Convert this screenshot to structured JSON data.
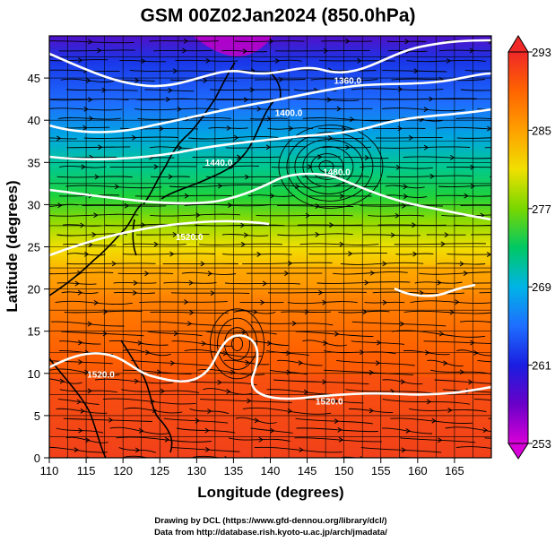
{
  "title": "GSM 00Z02Jan2024 (850.0hPa)",
  "xlabel": "Longitude (degrees)",
  "ylabel": "Latitude (degrees)",
  "credits": [
    "Drawing by DCL (https://www.gfd-dennou.org/library/dcl/)",
    "Data from http://database.rish.kyoto-u.ac.jp/arch/jmadata/"
  ],
  "chart_data": {
    "type": "heatmap",
    "description_of_fields": "850 hPa temperature (K) shaded, geopotential height contours (m) in white, streamlines in black",
    "xlim": [
      110,
      170
    ],
    "ylim": [
      0,
      50
    ],
    "xticks": [
      110,
      115,
      120,
      125,
      130,
      135,
      140,
      145,
      150,
      155,
      160,
      165
    ],
    "yticks": [
      0,
      5,
      10,
      15,
      20,
      25,
      30,
      35,
      40,
      45
    ],
    "colorbar": {
      "min": 253,
      "max": 293,
      "ticks": [
        253,
        261,
        269,
        277,
        285,
        293
      ],
      "colors": [
        "#d100d1",
        "#2a00c8",
        "#1f5cff",
        "#00b4e6",
        "#00c864",
        "#3cd200",
        "#a0dc00",
        "#f0e000",
        "#ffa000",
        "#ff6400",
        "#f02828"
      ]
    },
    "contour_labels": [
      {
        "text": "1360.0",
        "lon": 150.5,
        "lat": 44.3
      },
      {
        "text": "1400.0",
        "lon": 142.5,
        "lat": 40.5
      },
      {
        "text": "1440.0",
        "lon": 133.0,
        "lat": 34.6
      },
      {
        "text": "1480.0",
        "lon": 149.0,
        "lat": 33.5
      },
      {
        "text": "1520.0",
        "lon": 129.0,
        "lat": 25.8
      },
      {
        "text": "1520.0",
        "lon": 117.0,
        "lat": 9.5
      },
      {
        "text": "1520.0",
        "lon": 148.0,
        "lat": 6.3
      }
    ],
    "temperature_bands_by_latitude": [
      {
        "lat": 50,
        "temp": 262
      },
      {
        "lat": 45,
        "temp": 263
      },
      {
        "lat": 40,
        "temp": 266
      },
      {
        "lat": 35,
        "temp": 271
      },
      {
        "lat": 30,
        "temp": 277
      },
      {
        "lat": 25,
        "temp": 282
      },
      {
        "lat": 20,
        "temp": 286
      },
      {
        "lat": 10,
        "temp": 289
      },
      {
        "lat": 0,
        "temp": 292
      }
    ]
  }
}
